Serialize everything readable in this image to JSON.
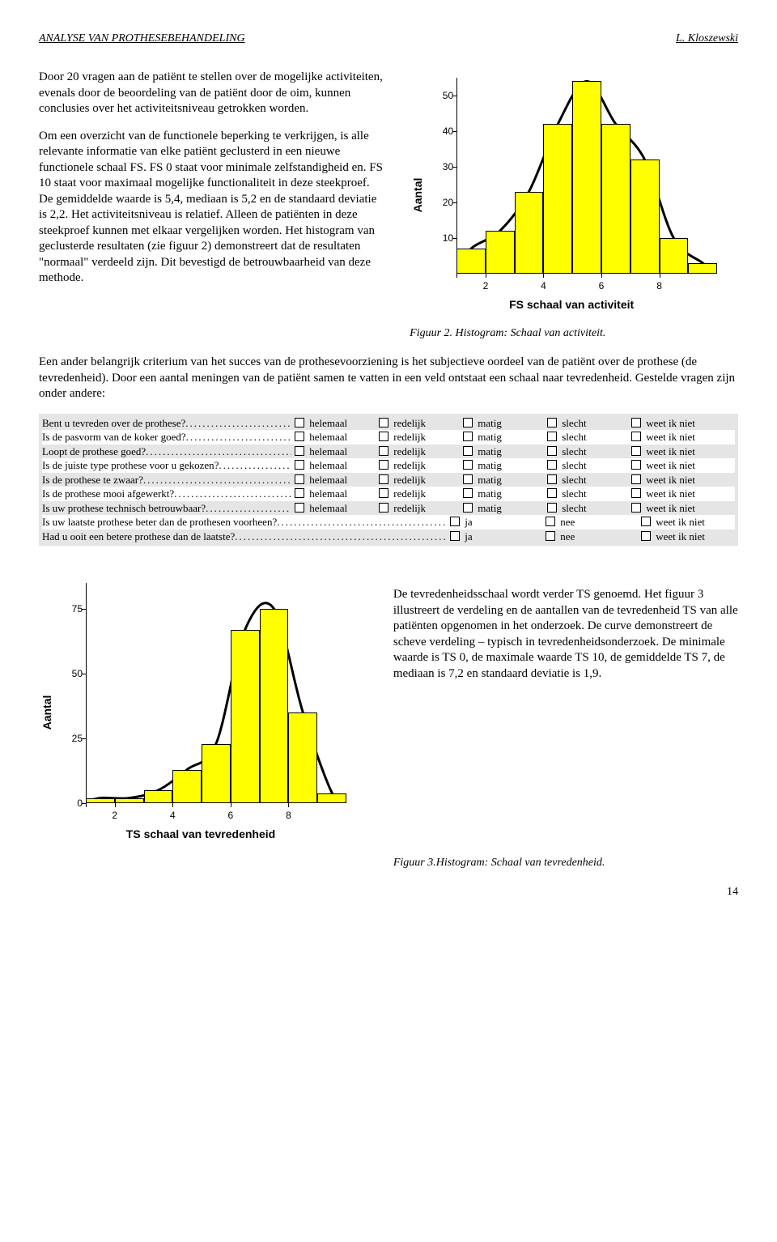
{
  "header": {
    "left": "ANALYSE VAN PROTHESEBEHANDELING",
    "right": "L. Kloszewski"
  },
  "text": {
    "para1": "Door 20 vragen aan de patiënt te stellen over de mogelijke activiteiten, evenals door de beoordeling van de patiënt door de oim, kunnen conclusies over het activiteitsniveau getrokken worden.",
    "para2": "Om een overzicht van de functionele beperking te verkrijgen, is alle relevante informatie van elke patiënt geclusterd in een nieuwe functionele schaal FS. FS 0 staat voor minimale zelfstandigheid en. FS 10 staat voor maximaal mogelijke functionaliteit in deze steekproef. De gemiddelde waarde is 5,4, mediaan is 5,2 en de standaard deviatie is 2,2. Het activiteitsniveau is relatief. Alleen de patiënten in deze steekproef kunnen met elkaar vergelijken worden. Het histogram van geclusterde resultaten (zie figuur 2) demonstreert dat de resultaten \"normaal\" verdeeld zijn. Dit bevestigd de betrouwbaarheid van deze methode.",
    "para3": "Een ander belangrijk criterium van het succes van de prothesevoorziening is het subjectieve oordeel van de patiënt over de prothese (de tevredenheid). Door een aantal meningen van de patiënt samen te vatten in een veld ontstaat een schaal naar tevredenheid. Gestelde vragen zijn onder andere:",
    "para4": "De tevredenheidsschaal wordt verder TS genoemd. Het figuur 3 illustreert de verdeling en de aantallen van de tevredenheid TS van alle patiënten opgenomen in het onderzoek. De curve demonstreert de scheve verdeling – typisch in tevredenheidsonderzoek. De minimale waarde is TS 0, de maximale waarde TS 10, de gemiddelde TS 7, de mediaan is 7,2  en standaard deviatie is 1,9."
  },
  "chart1": {
    "type": "histogram",
    "ylabel": "Aantal",
    "xlabel": "FS schaal van activiteit",
    "caption": "Figuur 2. Histogram: Schaal van activiteit.",
    "yticks": [
      10,
      20,
      30,
      40,
      50
    ],
    "ymax": 55,
    "xticks": [
      2,
      4,
      6,
      8
    ],
    "xmin": 1,
    "xmax": 10,
    "bars": [
      {
        "x": 1.5,
        "h": 7
      },
      {
        "x": 2.5,
        "h": 12
      },
      {
        "x": 3.5,
        "h": 23
      },
      {
        "x": 4.5,
        "h": 42
      },
      {
        "x": 5.5,
        "h": 54
      },
      {
        "x": 6.5,
        "h": 42
      },
      {
        "x": 7.5,
        "h": 32
      },
      {
        "x": 8.5,
        "h": 10
      },
      {
        "x": 9.5,
        "h": 3
      }
    ],
    "bar_color": "#ffff00",
    "bar_border": "#000000",
    "curve_color": "#000000",
    "curve_width": 3,
    "axis_fontsize": 12,
    "label_fontsize": 14
  },
  "questionnaire": {
    "opts5": [
      "helemaal",
      "redelijk",
      "matig",
      "slecht",
      "weet ik niet"
    ],
    "opts3": [
      "ja",
      "nee",
      "weet ik niet"
    ],
    "rows": [
      {
        "q": "Bent u tevreden over de prothese?",
        "type": 5,
        "alt": false
      },
      {
        "q": "Is de pasvorm van de koker goed?",
        "type": 5,
        "alt": true
      },
      {
        "q": "Loopt de prothese goed?",
        "type": 5,
        "alt": false
      },
      {
        "q": "Is de juiste type prothese voor u gekozen?",
        "type": 5,
        "alt": true
      },
      {
        "q": "Is de prothese te zwaar?",
        "type": 5,
        "alt": false
      },
      {
        "q": "Is de prothese mooi afgewerkt?",
        "type": 5,
        "alt": true
      },
      {
        "q": "Is uw prothese technisch betrouwbaar?",
        "type": 5,
        "alt": false
      },
      {
        "q": "Is uw laatste prothese beter dan de prothesen voorheen?",
        "type": 3,
        "alt": true
      },
      {
        "q": "Had u ooit een betere prothese dan de laatste?",
        "type": 3,
        "alt": false
      }
    ]
  },
  "chart2": {
    "type": "histogram",
    "ylabel": "Aantal",
    "xlabel": "TS schaal van tevredenheid",
    "caption": "Figuur 3.Histogram: Schaal van tevredenheid.",
    "yticks": [
      0,
      25,
      50,
      75
    ],
    "ymax": 85,
    "xticks": [
      2,
      4,
      6,
      8
    ],
    "xmin": 1,
    "xmax": 10,
    "bars": [
      {
        "x": 1.5,
        "h": 2
      },
      {
        "x": 2.5,
        "h": 2
      },
      {
        "x": 3.5,
        "h": 5
      },
      {
        "x": 4.5,
        "h": 13
      },
      {
        "x": 5.5,
        "h": 23
      },
      {
        "x": 6.5,
        "h": 67
      },
      {
        "x": 7.5,
        "h": 75
      },
      {
        "x": 8.5,
        "h": 35
      },
      {
        "x": 9.5,
        "h": 4
      }
    ],
    "bar_color": "#ffff00",
    "bar_border": "#000000",
    "curve_color": "#000000",
    "curve_width": 3,
    "axis_fontsize": 12,
    "label_fontsize": 14
  },
  "page_number": "14"
}
